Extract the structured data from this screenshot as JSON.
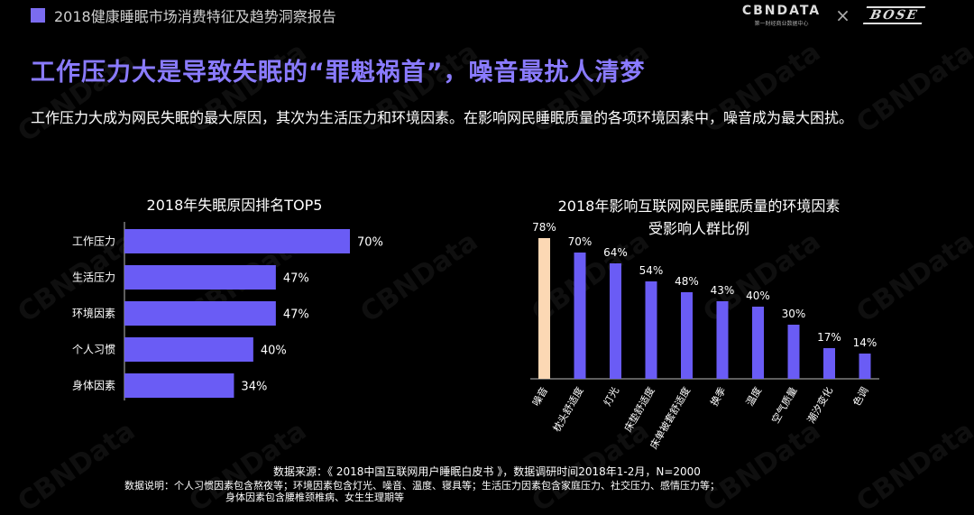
{
  "header": {
    "title": "2018健康睡眠市场消费特征及趋势洞察报告"
  },
  "logos": {
    "cbn_main": "CBNDATA",
    "cbn_sub": "第一财经商业数据中心",
    "separator": "×",
    "bose": "BOSE"
  },
  "headline": "工作压力大是导致失眠的“罪魁祸首”，噪音最扰人清梦",
  "intro": "工作压力大成为网民失眠的最大原因，其次为生活压力和环境因素。在影响网民睡眠质量的各项环境因素中，噪音成为最大困扰。",
  "watermark": "CBNData",
  "colors": {
    "accent": "#7b6cf0",
    "bar": "#6a5cf5",
    "highlight": "#fcd8b4",
    "headline": "#8a7bff"
  },
  "chart_data": [
    {
      "type": "bar",
      "orientation": "horizontal",
      "title": "2018年失眠原因排名TOP5",
      "categories": [
        "工作压力",
        "生活压力",
        "环境因素",
        "个人习惯",
        "身体因素"
      ],
      "values": [
        70,
        47,
        47,
        40,
        34
      ],
      "labels": [
        "70%",
        "47%",
        "47%",
        "40%",
        "34%"
      ],
      "xlim": [
        0,
        70
      ],
      "grid": false
    },
    {
      "type": "bar",
      "orientation": "vertical",
      "title_line1": "2018年影响互联网网民睡眠质量的环境因素",
      "title_line2": "受影响人群比例",
      "categories": [
        "噪音",
        "枕头舒适度",
        "灯光",
        "床垫舒适度",
        "床单被套舒适度",
        "换季",
        "温度",
        "空气质量",
        "潮汐变化",
        "色调"
      ],
      "values": [
        78,
        70,
        64,
        54,
        48,
        43,
        40,
        30,
        17,
        14
      ],
      "labels": [
        "78%",
        "70%",
        "64%",
        "54%",
        "48%",
        "43%",
        "40%",
        "30%",
        "17%",
        "14%"
      ],
      "highlight_index": 0,
      "ylim": [
        0,
        78
      ],
      "grid": false
    }
  ],
  "footer": {
    "source": "数据来源：《 2018中国互联网用户睡眠白皮书 》，数据调研时间2018年1-2月，N=2000",
    "notes_line1": "数据说明：个人习惯因素包含熬夜等；环境因素包含灯光、噪音、温度、寝具等；生活压力因素包含家庭压力、社交压力、感情压力等；",
    "notes_line2": "身体因素包含腰椎颈椎病、女生生理期等"
  }
}
